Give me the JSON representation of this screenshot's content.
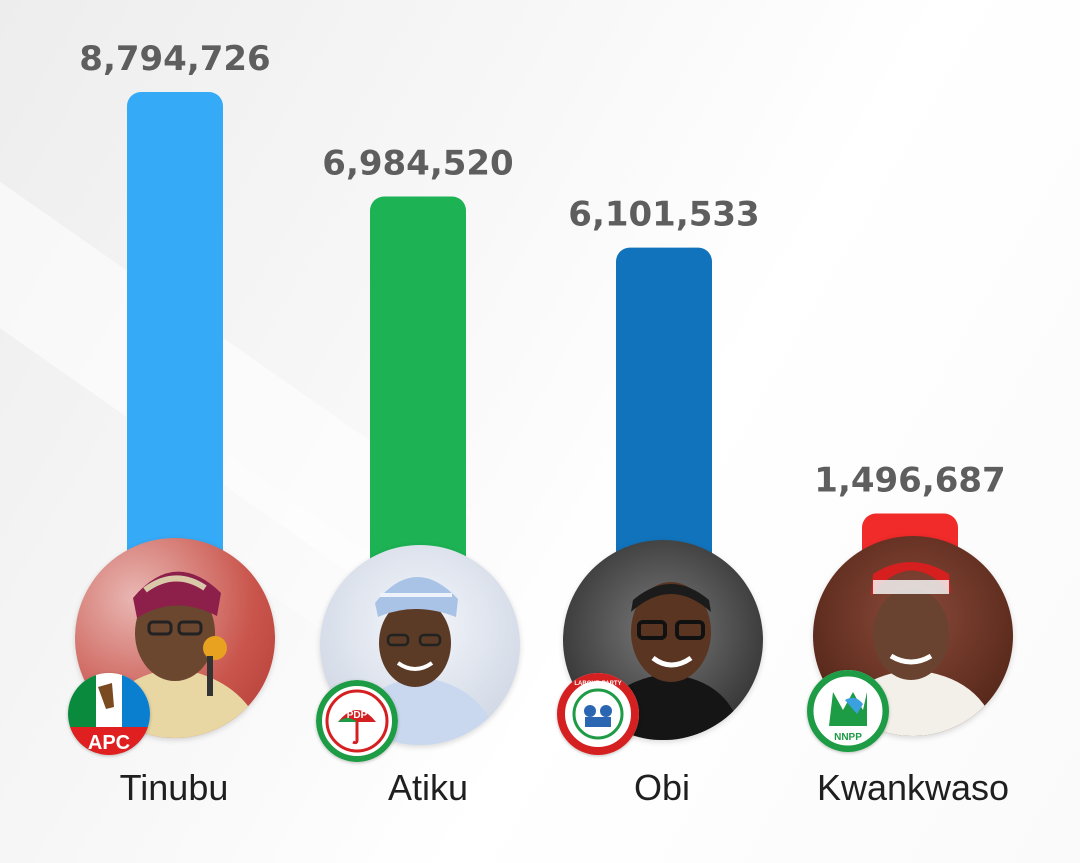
{
  "chart_data": {
    "type": "bar",
    "categories": [
      "Tinubu",
      "Atiku",
      "Obi",
      "Kwankwaso"
    ],
    "values": [
      8794726,
      6984520,
      6101533,
      1496687
    ],
    "value_labels": [
      "8,794,726",
      "6,984,520",
      "6,101,533",
      "1,496,687"
    ],
    "colors": [
      "#35aaf6",
      "#1db254",
      "#1173bb",
      "#f12a2a"
    ],
    "parties": [
      "APC",
      "PDP",
      "LABOUR PARTY",
      "NNPP"
    ],
    "title": "",
    "xlabel": "",
    "ylabel": "",
    "grid": false,
    "legend": "none"
  },
  "candidates": [
    {
      "name": "Tinubu",
      "party_logo": "apc-logo",
      "avatar": "tinubu-photo",
      "logo_text": "APC"
    },
    {
      "name": "Atiku",
      "party_logo": "pdp-logo",
      "avatar": "atiku-photo",
      "logo_text": "PDP"
    },
    {
      "name": "Obi",
      "party_logo": "labour-party-logo",
      "avatar": "obi-photo",
      "logo_text": "LABOUR PARTY"
    },
    {
      "name": "Kwankwaso",
      "party_logo": "nnpp-logo",
      "avatar": "kwankwaso-photo",
      "logo_text": "NNPP"
    }
  ]
}
